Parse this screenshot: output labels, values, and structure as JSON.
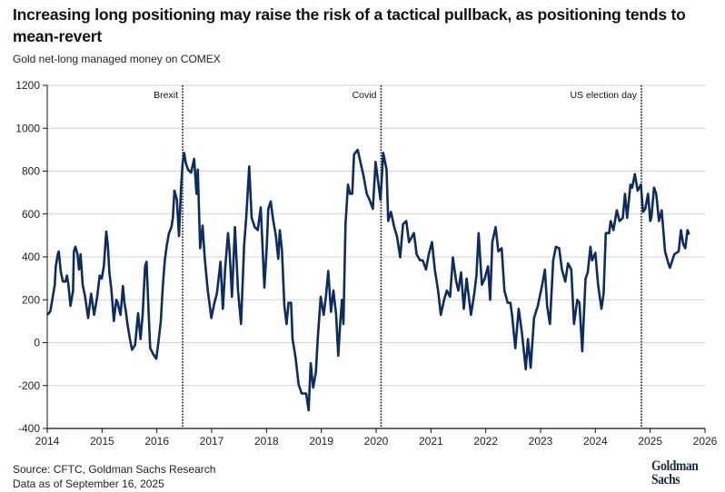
{
  "header": {
    "title": "Increasing long positioning may raise the risk of a tactical pullback, as positioning tends to mean-revert",
    "subtitle": "Gold net-long managed money on COMEX"
  },
  "footer": {
    "source": "Source: CFTC, Goldman Sachs Research",
    "data_as_of": "Data as of September 16, 2025",
    "logo": "Goldman Sachs"
  },
  "chart_data": {
    "type": "line",
    "title": "Increasing long positioning may raise the risk of a tactical pullback, as positioning tends to mean-revert",
    "subtitle": "Gold net-long managed money on COMEX",
    "xlabel": "",
    "ylabel": "",
    "xlim": [
      2014,
      2026
    ],
    "ylim": [
      -400,
      1200
    ],
    "x_ticks": [
      "2014",
      "2015",
      "2016",
      "2017",
      "2018",
      "2019",
      "2020",
      "2021",
      "2022",
      "2023",
      "2024",
      "2025",
      "2026"
    ],
    "y_ticks": [
      "1200",
      "1000",
      "800",
      "600",
      "400",
      "200",
      "0",
      "-200",
      "-400"
    ],
    "grid": "horizontal",
    "line_color": "#0e2d5e",
    "annotations": [
      {
        "label": "Brexit",
        "x": 2016.47
      },
      {
        "label": "Covid",
        "x": 2020.09
      },
      {
        "label": "US election day",
        "x": 2024.84
      }
    ],
    "series": [
      {
        "x": [
          2014.0,
          2014.055,
          2014.083,
          2014.138,
          2014.155,
          2014.193,
          2014.21,
          2014.249,
          2014.287,
          2014.331,
          2014.359,
          2014.387,
          2014.425,
          2014.47,
          2014.486,
          2014.514,
          2014.552,
          2014.58,
          2014.608,
          2014.646,
          2014.691,
          2014.746,
          2014.801,
          2014.856,
          2014.912,
          2014.956,
          2014.994,
          2015.033,
          2015.077,
          2015.105,
          2015.133,
          2015.171,
          2015.215,
          2015.26,
          2015.287,
          2015.309,
          2015.337,
          2015.381,
          2015.409,
          2015.436,
          2015.464,
          2015.508,
          2015.547,
          2015.602,
          2015.657,
          2015.702,
          2015.74,
          2015.785,
          2015.812,
          2015.851,
          2015.878,
          2015.934,
          2015.989,
          2016.028,
          2016.072,
          2016.11,
          2016.144,
          2016.182,
          2016.221,
          2016.265,
          2016.293,
          2016.32,
          2016.365,
          2016.403,
          2016.442,
          2016.47,
          2016.497,
          2016.53,
          2016.569,
          2016.624,
          2016.68,
          2016.724,
          2016.746,
          2016.79,
          2016.834,
          2016.873,
          2016.928,
          2016.994,
          2017.05,
          2017.094,
          2017.16,
          2017.204,
          2017.249,
          2017.298,
          2017.326,
          2017.37,
          2017.425,
          2017.481,
          2017.536,
          2017.591,
          2017.63,
          2017.685,
          2017.729,
          2017.785,
          2017.84,
          2017.895,
          2017.961,
          2018.006,
          2018.033,
          2018.077,
          2018.116,
          2018.171,
          2018.215,
          2018.243,
          2018.282,
          2018.326,
          2018.365,
          2018.403,
          2018.448,
          2018.475,
          2018.53,
          2018.586,
          2018.641,
          2018.724,
          2018.768,
          2018.807,
          2018.851,
          2018.901,
          2018.934,
          2018.989,
          2019.044,
          2019.083,
          2019.127,
          2019.177,
          2019.221,
          2019.271,
          2019.309,
          2019.343,
          2019.376,
          2019.403,
          2019.442,
          2019.486,
          2019.525,
          2019.564,
          2019.597,
          2019.663,
          2019.77,
          2019.83,
          2019.88,
          2019.94,
          2019.99,
          2020.08,
          2020.13,
          2020.19,
          2020.22,
          2020.27,
          2020.33,
          2020.38,
          2020.44,
          2020.49,
          2020.55,
          2020.6,
          2020.69,
          2020.74,
          2020.8,
          2020.85,
          2020.91,
          2020.96,
          2021.02,
          2021.07,
          2021.13,
          2021.18,
          2021.24,
          2021.29,
          2021.35,
          2021.4,
          2021.46,
          2021.5,
          2021.55,
          2021.6,
          2021.65,
          2021.73,
          2021.79,
          2021.83,
          2021.87,
          2021.93,
          2021.98,
          2022.04,
          2022.08,
          2022.12,
          2022.18,
          2022.23,
          2022.29,
          2022.34,
          2022.4,
          2022.45,
          2022.48,
          2022.54,
          2022.6,
          2022.66,
          2022.73,
          2022.77,
          2022.82,
          2022.88,
          2022.95,
          2023.03,
          2023.08,
          2023.12,
          2023.17,
          2023.23,
          2023.28,
          2023.34,
          2023.39,
          2023.45,
          2023.5,
          2023.56,
          2023.61,
          2023.67,
          2023.71,
          2023.76,
          2023.82,
          2023.86,
          2023.91,
          2023.94,
          2024.0,
          2024.05,
          2024.11,
          2024.15,
          2024.19,
          2024.25,
          2024.28,
          2024.33,
          2024.39,
          2024.44,
          2024.5,
          2024.54,
          2024.58,
          2024.64,
          2024.67,
          2024.72,
          2024.77,
          2024.83,
          2024.87,
          2024.91,
          2024.96,
          2025.0,
          2025.02,
          2025.07,
          2025.11,
          2025.16,
          2025.21,
          2025.27,
          2025.33,
          2025.36,
          2025.44,
          2025.52,
          2025.56,
          2025.6,
          2025.64,
          2025.68,
          2025.71
        ],
        "y": [
          130,
          145,
          186,
          270,
          356,
          412,
          425,
          327,
          285,
          285,
          313,
          270,
          172,
          243,
          426,
          447,
          412,
          341,
          412,
          270,
          214,
          115,
          228,
          130,
          214,
          313,
          299,
          356,
          518,
          454,
          327,
          243,
          101,
          200,
          186,
          158,
          130,
          264,
          186,
          144,
          87,
          17,
          -33,
          -11,
          137,
          17,
          130,
          356,
          377,
          130,
          -25,
          -54,
          -75,
          3,
          101,
          270,
          384,
          454,
          511,
          539,
          582,
          709,
          666,
          497,
          723,
          836,
          885,
          836,
          807,
          793,
          857,
          694,
          807,
          440,
          546,
          397,
          243,
          115,
          186,
          228,
          377,
          158,
          356,
          511,
          426,
          214,
          539,
          243,
          87,
          454,
          582,
          822,
          582,
          539,
          525,
          631,
          257,
          454,
          624,
          659,
          582,
          497,
          391,
          525,
          433,
          172,
          87,
          186,
          186,
          17,
          -68,
          -195,
          -237,
          -237,
          -315,
          -96,
          -209,
          -138,
          17,
          214,
          130,
          214,
          334,
          144,
          243,
          130,
          -61,
          87,
          200,
          87,
          553,
          737,
          694,
          694,
          878,
          899,
          779,
          694,
          666,
          624,
          843,
          666,
          885,
          807,
          567,
          610,
          539,
          497,
          398,
          553,
          567,
          469,
          511,
          412,
          384,
          384,
          341,
          412,
          469,
          341,
          243,
          130,
          200,
          243,
          214,
          398,
          285,
          243,
          327,
          158,
          299,
          130,
          228,
          313,
          511,
          270,
          299,
          356,
          200,
          469,
          539,
          426,
          440,
          243,
          186,
          186,
          130,
          -26,
          158,
          45,
          -124,
          17,
          -117,
          115,
          172,
          270,
          341,
          172,
          87,
          384,
          447,
          440,
          341,
          285,
          370,
          341,
          87,
          200,
          186,
          -40,
          299,
          327,
          447,
          384,
          419,
          270,
          158,
          228,
          511,
          511,
          567,
          525,
          617,
          567,
          581,
          694,
          582,
          737,
          723,
          786,
          709,
          737,
          610,
          624,
          694,
          567,
          582,
          723,
          694,
          567,
          617,
          426,
          370,
          349,
          412,
          426,
          525,
          461,
          440,
          525,
          504
        ]
      }
    ]
  }
}
